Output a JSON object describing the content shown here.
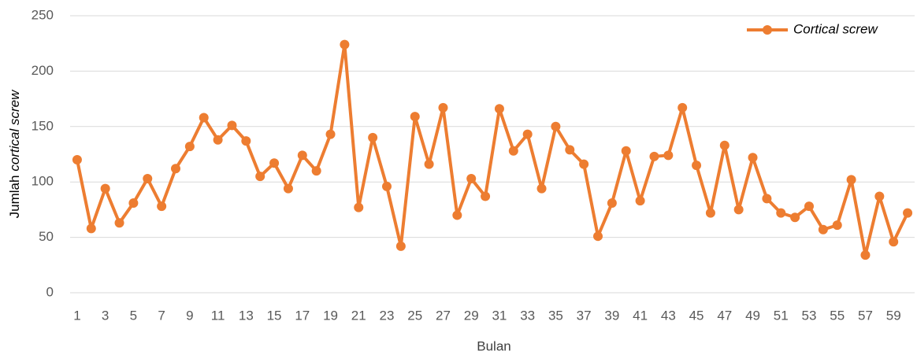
{
  "chart_data": {
    "type": "line",
    "y_label": [
      "Jumlah",
      "cortical screw"
    ],
    "x_label": "Bulan",
    "categories": [
      1,
      null,
      3,
      null,
      5,
      null,
      7,
      null,
      9,
      null,
      11,
      null,
      13,
      null,
      15,
      null,
      17,
      null,
      19,
      null,
      21,
      null,
      23,
      null,
      25,
      null,
      27,
      null,
      29,
      null,
      31,
      null,
      33,
      null,
      35,
      null,
      37,
      null,
      39,
      null,
      41,
      null,
      43,
      null,
      45,
      null,
      47,
      null,
      49,
      null,
      51,
      null,
      53,
      null,
      55,
      null,
      57,
      null,
      59,
      null
    ],
    "series": [
      {
        "name": "Cortical screw",
        "color": "#ed7d31",
        "values": [
          120,
          58,
          94,
          63,
          81,
          103,
          78,
          112,
          132,
          158,
          138,
          151,
          137,
          105,
          117,
          94,
          124,
          110,
          143,
          224,
          77,
          140,
          96,
          42,
          159,
          116,
          167,
          70,
          103,
          87,
          166,
          128,
          143,
          94,
          150,
          129,
          116,
          51,
          81,
          128,
          83,
          123,
          124,
          167,
          115,
          72,
          133,
          75,
          122,
          85,
          72,
          68,
          78,
          57,
          61,
          102,
          34,
          87,
          46,
          72
        ]
      }
    ],
    "ylim": [
      0,
      250
    ],
    "yticks": [
      0,
      50,
      100,
      150,
      200,
      250
    ],
    "grid": true,
    "legend": "top-right"
  }
}
